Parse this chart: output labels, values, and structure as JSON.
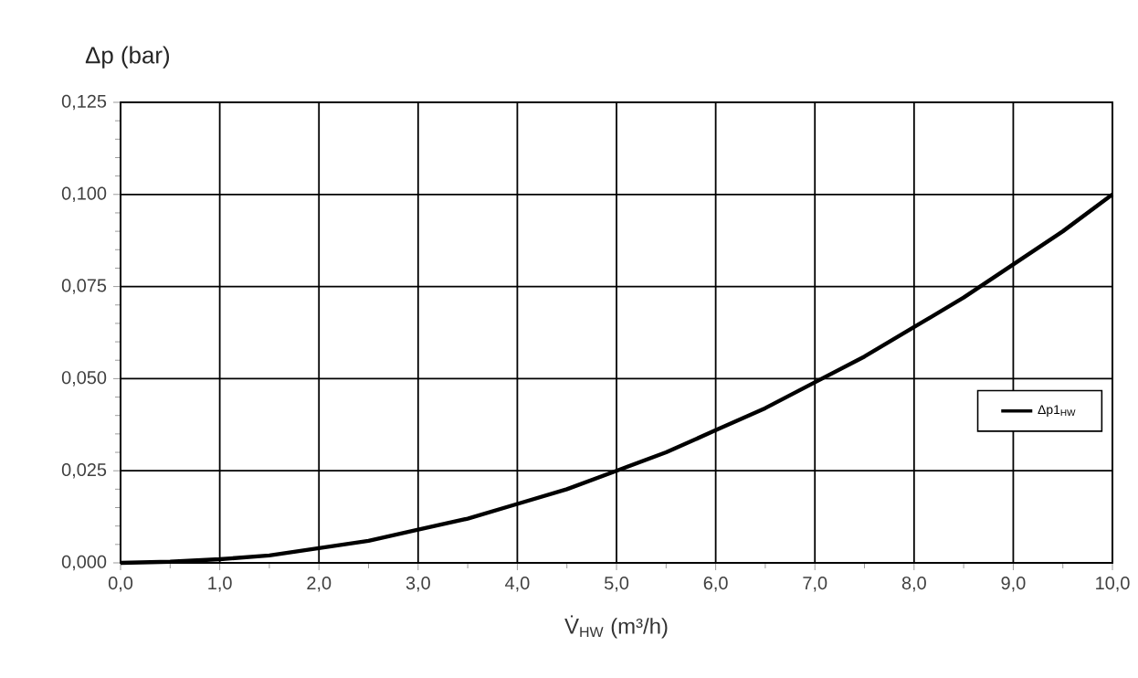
{
  "chart_data": {
    "type": "line",
    "ylabel": "Δp (bar)",
    "xlabel": "V̇$_{HW}$ (m³/h)",
    "x": [
      0,
      0.5,
      1,
      1.5,
      2,
      2.5,
      3,
      3.5,
      4,
      4.5,
      5,
      5.5,
      6,
      6.5,
      7,
      7.5,
      8,
      8.5,
      9,
      9.5,
      10
    ],
    "series": [
      {
        "name": "Δp1$_{HW}$",
        "color": "#000000",
        "values": [
          0,
          0.0003,
          0.001,
          0.002,
          0.004,
          0.006,
          0.009,
          0.012,
          0.016,
          0.02,
          0.025,
          0.03,
          0.036,
          0.042,
          0.049,
          0.056,
          0.064,
          0.072,
          0.081,
          0.09,
          0.1
        ]
      }
    ],
    "xlim": [
      0,
      10
    ],
    "ylim": [
      0,
      0.125
    ],
    "xticks": [
      {
        "value": 0,
        "label": "0,0"
      },
      {
        "value": 1,
        "label": "1,0"
      },
      {
        "value": 2,
        "label": "2,0"
      },
      {
        "value": 3,
        "label": "3,0"
      },
      {
        "value": 4,
        "label": "4,0"
      },
      {
        "value": 5,
        "label": "5,0"
      },
      {
        "value": 6,
        "label": "6,0"
      },
      {
        "value": 7,
        "label": "7,0"
      },
      {
        "value": 8,
        "label": "8,0"
      },
      {
        "value": 9,
        "label": "9,0"
      },
      {
        "value": 10,
        "label": "10,0"
      }
    ],
    "yticks": [
      {
        "value": 0,
        "label": "0,000"
      },
      {
        "value": 0.025,
        "label": "0,025"
      },
      {
        "value": 0.05,
        "label": "0,050"
      },
      {
        "value": 0.075,
        "label": "0,075"
      },
      {
        "value": 0.1,
        "label": "0,100"
      },
      {
        "value": 0.125,
        "label": "0,125"
      }
    ],
    "grid": true,
    "legend": "right",
    "marker": "none",
    "line_style": "solid"
  }
}
